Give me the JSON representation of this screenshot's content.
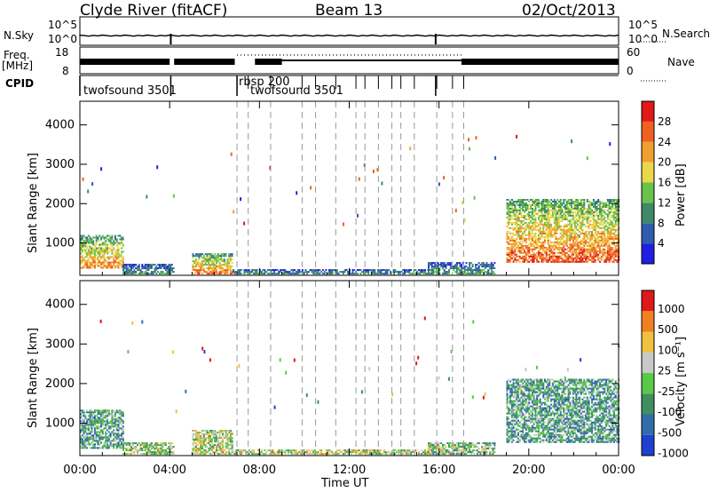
{
  "header": {
    "station": "Clyde River (fitACF)",
    "beam": "Beam 13",
    "date": "02/Oct/2013"
  },
  "strips": {
    "nsky": {
      "label": "N.Sky",
      "left_ticks": [
        "10^5",
        "10^0"
      ],
      "right_label": "N.Search",
      "right_ticks": [
        "10^5",
        "10^0"
      ]
    },
    "freq": {
      "label_line1": "Freq.",
      "label_line2": "[MHz]",
      "left_ticks": [
        "18",
        "8"
      ],
      "right_label": "Nave",
      "right_ticks": [
        "60",
        "0"
      ]
    },
    "cpid": {
      "label": "CPID",
      "programs": [
        "twofsound 3501",
        "rbsp 200",
        "twofsound 3501"
      ]
    }
  },
  "chart_data": [
    {
      "type": "heatmap",
      "panel": "power",
      "xlabel": "Time UT",
      "ylabel": "Slant Range [km]",
      "x_ticks": [
        "00:00",
        "04:00",
        "08:00",
        "12:00",
        "16:00",
        "20:00",
        "00:00"
      ],
      "y_ticks": [
        1000,
        2000,
        3000,
        4000
      ],
      "xlim_hours": [
        0,
        24
      ],
      "ylim_km": [
        180,
        4600
      ],
      "colorbar": {
        "label": "Power [dB]",
        "ticks": [
          "4",
          "8",
          "12",
          "16",
          "20",
          "24",
          "28"
        ],
        "colors": [
          "#1f1fe0",
          "#2e5db0",
          "#3f8a66",
          "#69c24a",
          "#e8d84a",
          "#f0a030",
          "#f06020",
          "#e01818"
        ]
      },
      "echo_regions": [
        {
          "t0": 0.0,
          "t1": 1.9,
          "r0": 350,
          "r1": 1200,
          "level": 0.75
        },
        {
          "t0": 1.9,
          "t1": 4.2,
          "r0": 200,
          "r1": 450,
          "level": 0.35
        },
        {
          "t0": 5.0,
          "t1": 6.8,
          "r0": 200,
          "r1": 700,
          "level": 0.8
        },
        {
          "t0": 6.8,
          "t1": 15.5,
          "r0": 200,
          "r1": 330,
          "level": 0.3
        },
        {
          "t0": 15.5,
          "t1": 18.5,
          "r0": 200,
          "r1": 500,
          "level": 0.35
        },
        {
          "t0": 19.0,
          "t1": 24.0,
          "r0": 500,
          "r1": 2100,
          "level": 0.85
        }
      ],
      "dashed_lines_hours": [
        7.0,
        7.5,
        8.5,
        9.9,
        10.5,
        11.4,
        12.3,
        12.7,
        13.3,
        13.9,
        14.3,
        14.9,
        15.9,
        16.6,
        17.1
      ]
    },
    {
      "type": "heatmap",
      "panel": "velocity",
      "xlabel": "Time UT",
      "ylabel": "Slant Range [km]",
      "x_ticks": [
        "00:00",
        "04:00",
        "08:00",
        "12:00",
        "16:00",
        "20:00",
        "00:00"
      ],
      "y_ticks": [
        1000,
        2000,
        3000,
        4000
      ],
      "xlim_hours": [
        0,
        24
      ],
      "ylim_km": [
        180,
        4600
      ],
      "colorbar": {
        "label": "Velocity [m s⁻¹]",
        "ticks": [
          "1000",
          "500",
          "100",
          "25",
          "-25",
          "-100",
          "-500",
          "-1000"
        ],
        "colors": [
          "#1f40d0",
          "#2f6ea8",
          "#3f8f60",
          "#5ac84a",
          "#c8c8c8",
          "#f0c040",
          "#f08020",
          "#e01818"
        ]
      },
      "echo_regions": [
        {
          "t0": 0.0,
          "t1": 1.9,
          "r0": 350,
          "r1": 1300,
          "level": 0.35
        },
        {
          "t0": 1.9,
          "t1": 4.2,
          "r0": 200,
          "r1": 500,
          "level": 0.5
        },
        {
          "t0": 5.0,
          "t1": 6.8,
          "r0": 200,
          "r1": 800,
          "level": 0.55
        },
        {
          "t0": 6.8,
          "t1": 15.5,
          "r0": 200,
          "r1": 330,
          "level": 0.55
        },
        {
          "t0": 15.5,
          "t1": 18.5,
          "r0": 200,
          "r1": 500,
          "level": 0.45
        },
        {
          "t0": 19.0,
          "t1": 24.0,
          "r0": 500,
          "r1": 2100,
          "level": 0.35
        }
      ],
      "dashed_lines_hours": [
        7.0,
        7.5,
        8.5,
        9.9,
        10.5,
        11.4,
        12.3,
        12.7,
        13.3,
        13.9,
        14.3,
        14.9,
        15.9,
        16.6,
        17.1
      ]
    }
  ]
}
